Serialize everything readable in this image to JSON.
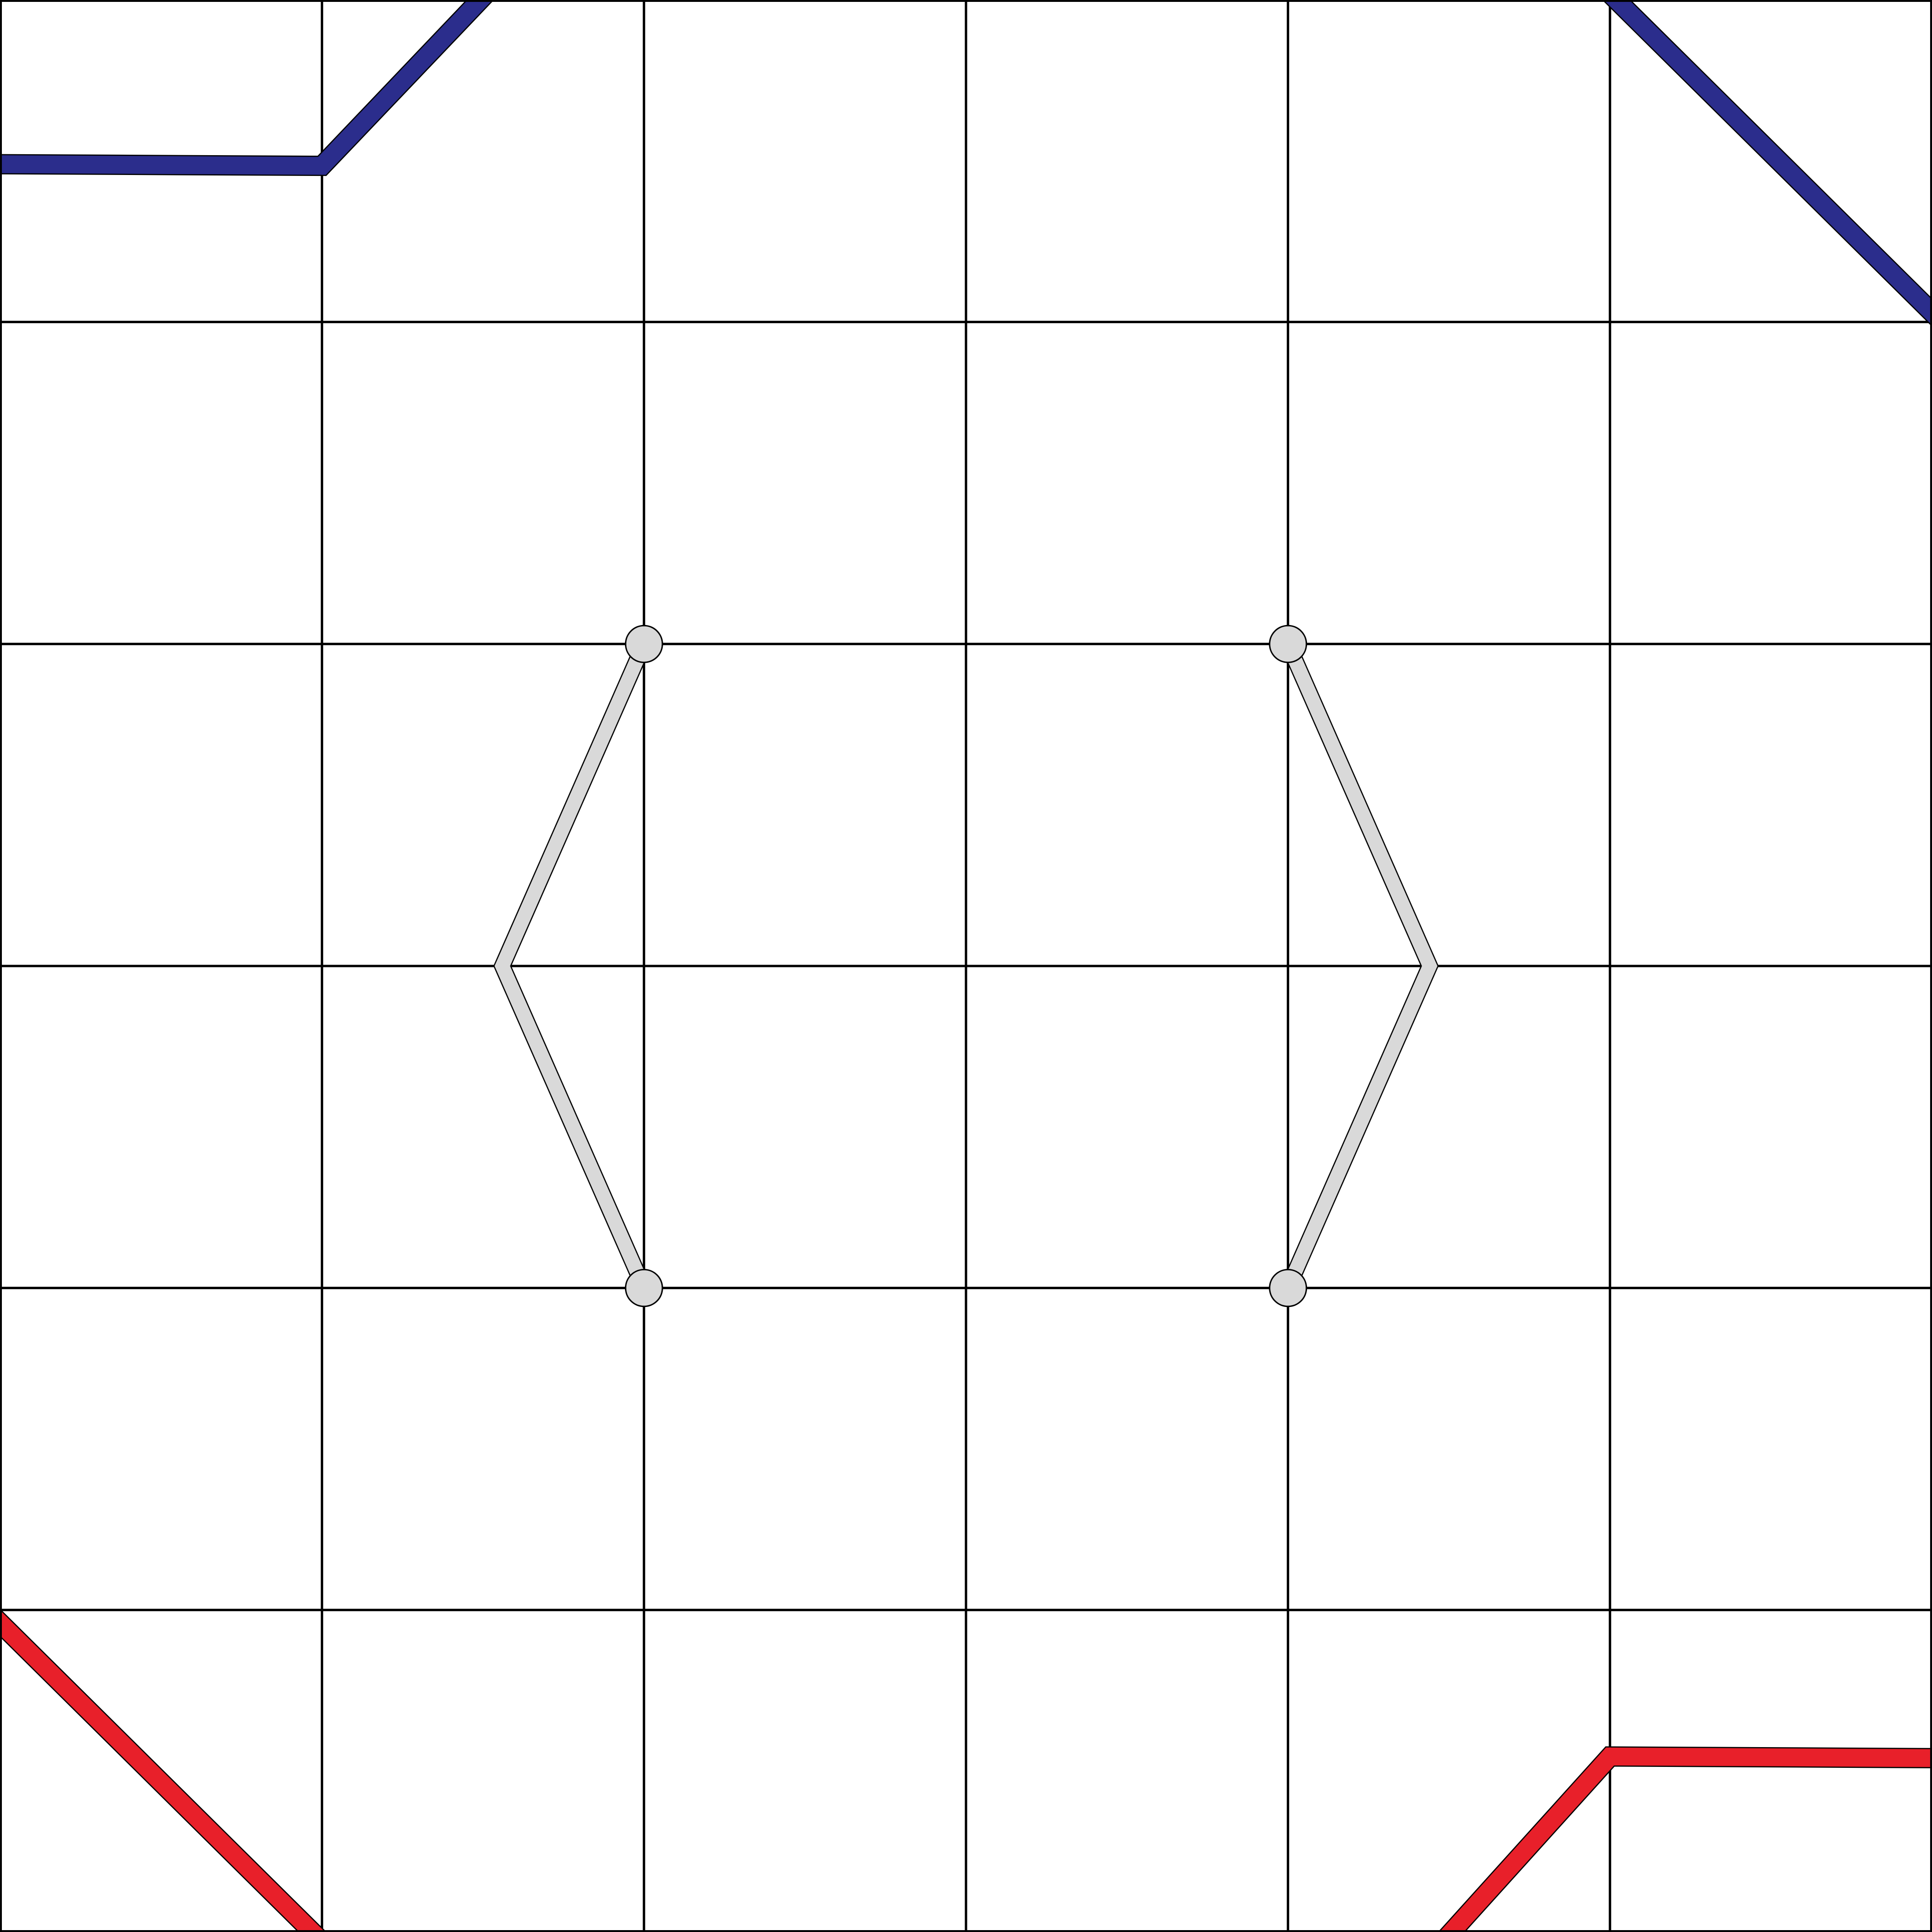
{
  "board": {
    "rows": 6,
    "cols": 6,
    "background": "#ffffff",
    "grid_color": "#000000"
  },
  "colors": {
    "blue_wall": "#2b2d8c",
    "red_wall": "#e8202a",
    "gray_wall": "#d9d9d9",
    "gray_node": "#d9d9d9",
    "outline": "#000000"
  },
  "nodes": [
    {
      "id": "node-a",
      "col": 2,
      "row": 2
    },
    {
      "id": "node-b",
      "col": 4,
      "row": 2
    },
    {
      "id": "node-c",
      "col": 2,
      "row": 4
    },
    {
      "id": "node-d",
      "col": 4,
      "row": 4
    }
  ],
  "walls": [
    {
      "name": "blue-wall-top-left",
      "color_key": "blue_wall",
      "points": [
        [
          0,
          0.51
        ],
        [
          1,
          0.515
        ],
        [
          1.51,
          -0.02
        ]
      ]
    },
    {
      "name": "blue-wall-top-right",
      "color_key": "blue_wall",
      "points": [
        [
          5,
          -0.02
        ],
        [
          6.02,
          0.99
        ]
      ]
    },
    {
      "name": "red-wall-bottom-left",
      "color_key": "red_wall",
      "points": [
        [
          -0.02,
          5.02
        ],
        [
          0.99,
          6.02
        ]
      ]
    },
    {
      "name": "red-wall-bottom-right",
      "color_key": "red_wall",
      "points": [
        [
          4.49,
          6.02
        ],
        [
          5,
          5.455
        ],
        [
          6,
          5.46
        ]
      ]
    },
    {
      "name": "gray-link-left",
      "color_key": "gray_wall",
      "points": [
        [
          2,
          2
        ],
        [
          1.56,
          3
        ],
        [
          2,
          4
        ]
      ]
    },
    {
      "name": "gray-link-right",
      "color_key": "gray_wall",
      "points": [
        [
          4,
          2
        ],
        [
          4.44,
          3
        ],
        [
          4,
          4
        ]
      ]
    }
  ]
}
